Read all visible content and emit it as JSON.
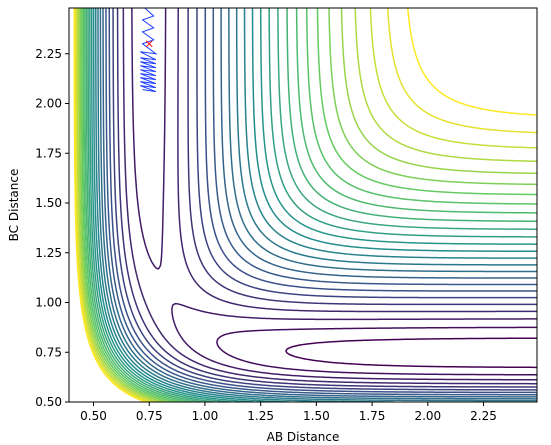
{
  "chart_data": {
    "type": "contour",
    "xlabel": "AB Distance",
    "ylabel": "BC Distance",
    "xlim": [
      0.39,
      2.49
    ],
    "ylim": [
      0.5,
      2.48
    ],
    "xticks": [
      {
        "value": 0.5,
        "label": "0.50"
      },
      0.75,
      {
        "value": 1.0,
        "label": "1.00"
      },
      1.25,
      {
        "value": 1.5,
        "label": "1.50"
      },
      1.75,
      {
        "value": 2.0,
        "label": "2.00"
      },
      2.25
    ],
    "yticks": [
      {
        "value": 0.5,
        "label": "0.50"
      },
      0.75,
      {
        "value": 1.0,
        "label": "1.00"
      },
      1.25,
      {
        "value": 1.5,
        "label": "1.50"
      },
      1.75,
      {
        "value": 2.0,
        "label": "2.00"
      },
      2.25
    ],
    "levels": [
      -4.65,
      -4.5,
      -4.35,
      -4.2,
      -4.05,
      -3.9,
      -3.75,
      -3.6,
      -3.45,
      -3.3,
      -3.15,
      -3.0,
      -2.85,
      -2.7,
      -2.55,
      -2.4,
      -2.25,
      -2.1,
      -1.95,
      -1.8,
      -1.65,
      -1.5,
      -1.35,
      -1.2,
      -1.05,
      -0.9
    ],
    "colormap": [
      "#440154",
      "#3b528b",
      "#21918c",
      "#5ec962",
      "#fde725"
    ],
    "trajectory": {
      "color": "#1f3fff",
      "x": [
        0.72,
        0.78,
        0.71,
        0.78,
        0.71,
        0.78,
        0.71,
        0.78,
        0.71,
        0.78,
        0.71,
        0.78,
        0.71,
        0.78,
        0.71,
        0.78,
        0.71,
        0.78,
        0.71,
        0.78,
        0.72,
        0.77,
        0.72,
        0.77,
        0.72,
        0.77,
        0.73
      ],
      "y": [
        2.07,
        2.06,
        2.09,
        2.08,
        2.11,
        2.1,
        2.13,
        2.12,
        2.15,
        2.14,
        2.17,
        2.16,
        2.19,
        2.18,
        2.21,
        2.2,
        2.23,
        2.22,
        2.26,
        2.25,
        2.3,
        2.32,
        2.36,
        2.38,
        2.42,
        2.44,
        2.48
      ]
    },
    "start": {
      "x": 0.75,
      "y": 2.3,
      "color": "#ff0000"
    }
  }
}
